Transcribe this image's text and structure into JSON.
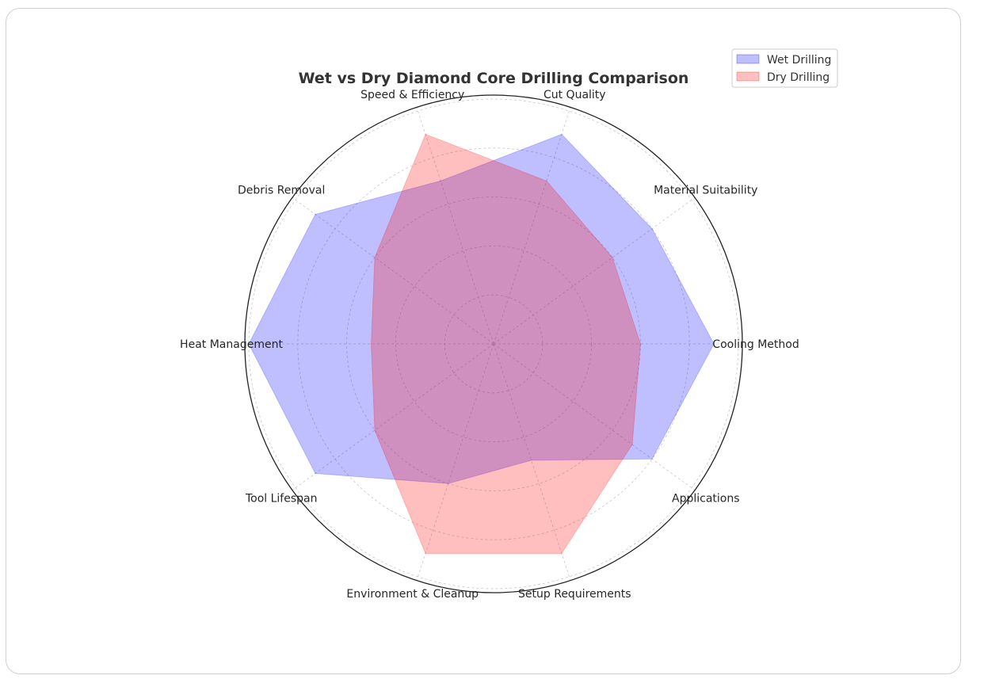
{
  "chart_data": {
    "type": "radar",
    "title": "Wet vs Dry Diamond Core Drilling Comparison",
    "categories": [
      "Cooling Method",
      "Material Suitability",
      "Cut Quality",
      "Speed & Efficiency",
      "Debris Removal",
      "Heat Management",
      "Tool Lifespan",
      "Environment & Cleanup",
      "Setup Requirements",
      "Applications"
    ],
    "rlim": [
      0,
      10
    ],
    "grid": true,
    "legend_position": "top-right",
    "series": [
      {
        "name": "Wet Drilling",
        "color": "#0000ff",
        "values": [
          9,
          8,
          9,
          7,
          9,
          10,
          9,
          6,
          5,
          8
        ]
      },
      {
        "name": "Dry Drilling",
        "color": "#ff0000",
        "values": [
          6,
          6,
          7,
          9,
          6,
          5,
          6,
          9,
          9,
          7
        ]
      }
    ]
  }
}
